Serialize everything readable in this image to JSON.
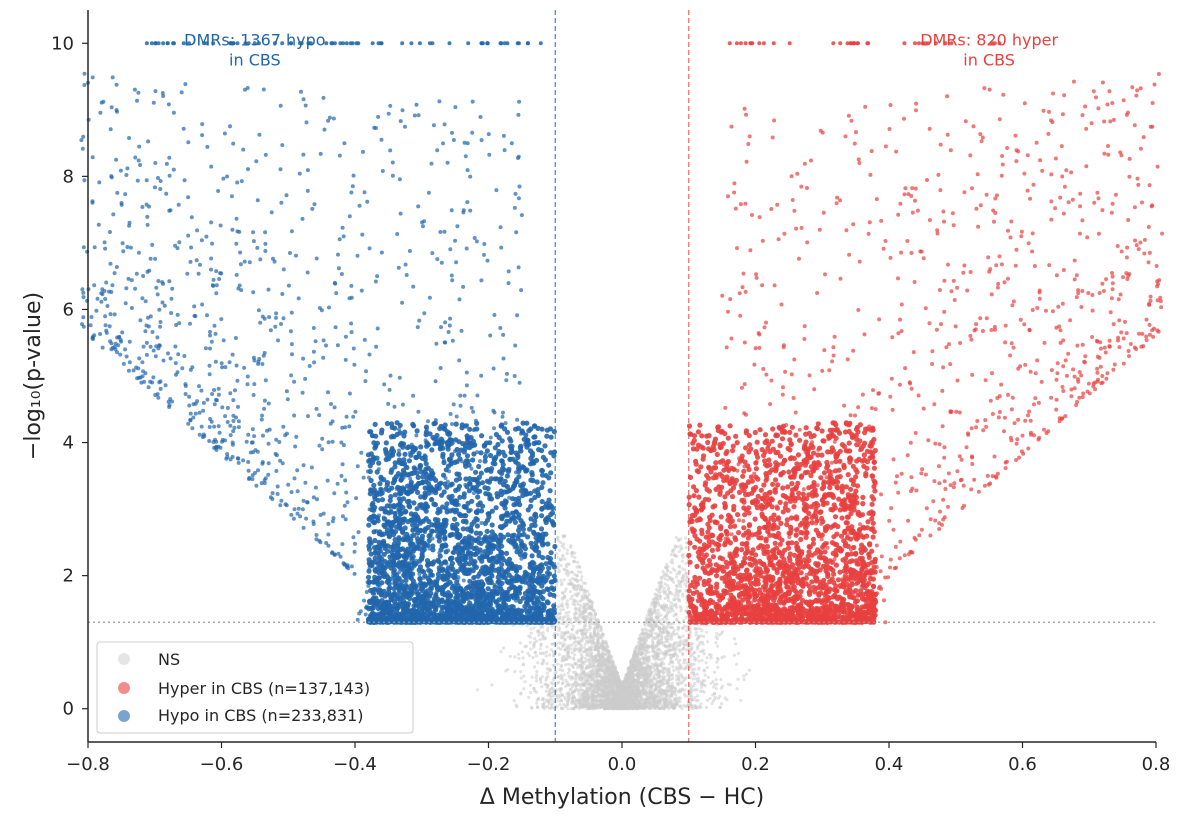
{
  "chart_data": {
    "type": "scatter",
    "title": "",
    "xlabel": "Δ Methylation (CBS − HC)",
    "ylabel": "−log₁₀(p-value)",
    "xlim": [
      -0.8,
      0.8
    ],
    "ylim": [
      -0.5,
      10.5
    ],
    "xticks": [
      -0.8,
      -0.6,
      -0.4,
      -0.2,
      0.0,
      0.2,
      0.4,
      0.6,
      0.8
    ],
    "xtick_labels": [
      "−0.8",
      "−0.6",
      "−0.4",
      "−0.2",
      "0.0",
      "0.2",
      "0.4",
      "0.6",
      "0.8"
    ],
    "yticks": [
      0,
      2,
      4,
      6,
      8,
      10
    ],
    "ytick_labels": [
      "0",
      "2",
      "4",
      "6",
      "8",
      "10"
    ],
    "grid": false,
    "thresholds": {
      "delta_methylation": [
        -0.1,
        0.1
      ],
      "neg_log10_p": 1.3,
      "p_cap": 10
    },
    "series": [
      {
        "name": "NS",
        "color": "#cccccc",
        "x_range": [
          -0.3,
          0.3
        ],
        "y_range": [
          0,
          2.6
        ]
      },
      {
        "name": "Hyper in CBS (n=137,143)",
        "color": "#e8403f",
        "x_range": [
          0.1,
          0.8
        ],
        "y_range": [
          1.3,
          10
        ],
        "count": 137143
      },
      {
        "name": "Hypo in CBS (n=233,831)",
        "color": "#2166ac",
        "x_range": [
          -0.8,
          -0.1
        ],
        "y_range": [
          1.3,
          10
        ],
        "count": 233831
      }
    ],
    "annotations": [
      {
        "lines": [
          "DMRs: 1367 hypo",
          "in CBS"
        ],
        "x": -0.55,
        "y": 10,
        "color": "#2166ac"
      },
      {
        "lines": [
          "DMRs: 820 hyper",
          "in CBS"
        ],
        "x": 0.55,
        "y": 10,
        "color": "#e8403f"
      }
    ],
    "legend": {
      "position": "lower-left",
      "entries": [
        {
          "label": "NS",
          "color": "#cccccc"
        },
        {
          "label": "Hyper in CBS (n=137,143)",
          "color": "#e8403f"
        },
        {
          "label": "Hypo in CBS (n=233,831)",
          "color": "#2166ac"
        }
      ]
    }
  }
}
